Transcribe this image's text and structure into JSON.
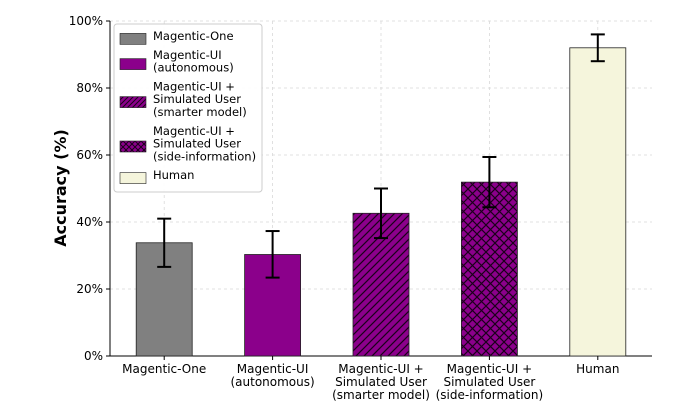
{
  "chart_data": {
    "type": "bar",
    "ylabel": "Accuracy (%)",
    "ylim": [
      0,
      100
    ],
    "y_ticks": [
      "0%",
      "20%",
      "40%",
      "60%",
      "80%",
      "100%"
    ],
    "grid": "on",
    "legend_placement": "top-left",
    "series": [
      {
        "name": "Magentic-One",
        "label_lines": [
          "Magentic-One"
        ],
        "x_label_lines": [
          "Magentic-One"
        ],
        "value": 33.8,
        "err_low": 26.6,
        "err_high": 41.0,
        "color": "#808080",
        "hatch": "none"
      },
      {
        "name": "Magentic-UI (autonomous)",
        "label_lines": [
          "Magentic-UI",
          "(autonomous)"
        ],
        "x_label_lines": [
          "Magentic-UI",
          "(autonomous)"
        ],
        "value": 30.3,
        "err_low": 23.4,
        "err_high": 37.3,
        "color": "#8b008b",
        "hatch": "none"
      },
      {
        "name": "Magentic-UI + Simulated User (smarter model)",
        "label_lines": [
          "Magentic-UI +",
          "Simulated User",
          "(smarter model)"
        ],
        "x_label_lines": [
          "Magentic-UI +",
          "Simulated User",
          "(smarter model)"
        ],
        "value": 42.6,
        "err_low": 35.2,
        "err_high": 50.0,
        "color": "#8b008b",
        "hatch": "diagonal"
      },
      {
        "name": "Magentic-UI + Simulated User (side-information)",
        "label_lines": [
          "Magentic-UI +",
          "Simulated User",
          "(side-information)"
        ],
        "x_label_lines": [
          "Magentic-UI +",
          "Simulated User",
          "(side-information)"
        ],
        "value": 51.9,
        "err_low": 44.4,
        "err_high": 59.4,
        "color": "#8b008b",
        "hatch": "cross"
      },
      {
        "name": "Human",
        "label_lines": [
          "Human"
        ],
        "x_label_lines": [
          "Human"
        ],
        "value": 92.0,
        "err_low": 88.0,
        "err_high": 96.0,
        "color": "#f5f5dc",
        "hatch": "none"
      }
    ]
  }
}
